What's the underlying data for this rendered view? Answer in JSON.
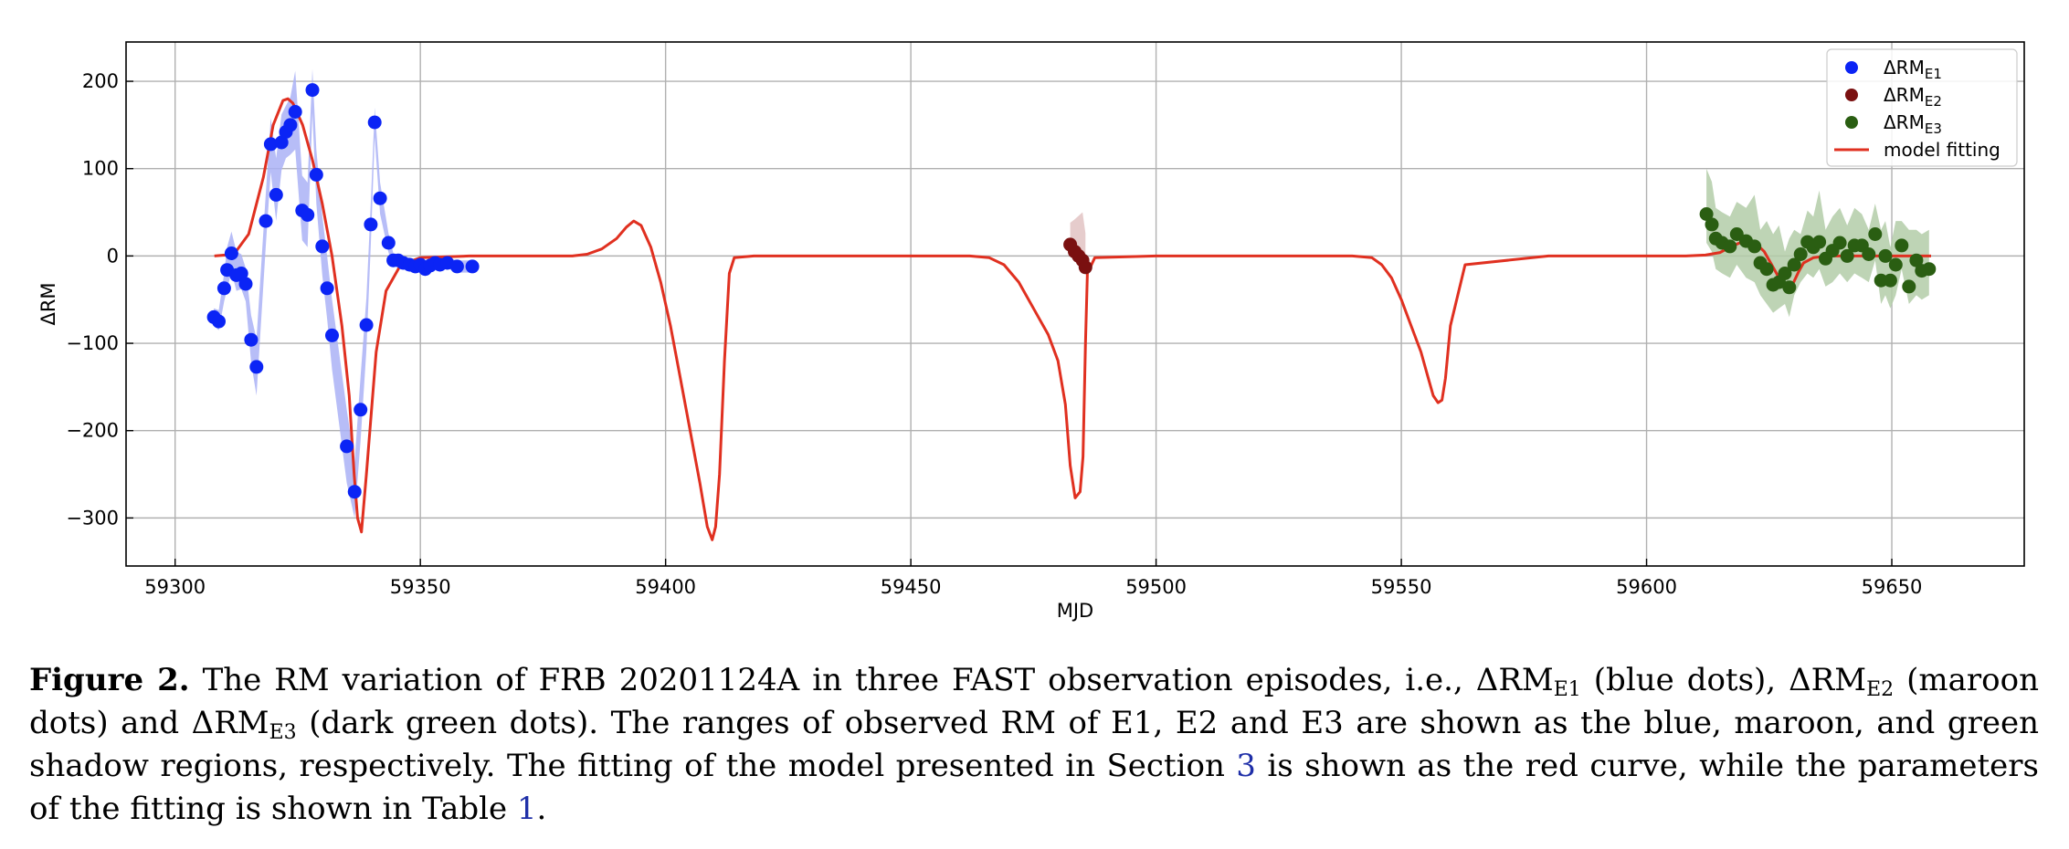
{
  "chart_data": {
    "type": "scatter",
    "xlabel": "MJD",
    "ylabel": "ΔRM",
    "xlim": [
      59290,
      59677
    ],
    "ylim": [
      -355,
      245
    ],
    "xticks": [
      59300,
      59350,
      59400,
      59450,
      59500,
      59550,
      59600,
      59650
    ],
    "yticks": [
      200,
      100,
      0,
      -100,
      -200,
      -300
    ],
    "ytick_labels": [
      "200",
      "100",
      "0",
      "−100",
      "−200",
      "−300"
    ],
    "grid": true,
    "legend_position": "top-right",
    "legend": [
      {
        "main": "ΔRM",
        "sub": "E1",
        "kind": "dot",
        "color": "#0b24f5"
      },
      {
        "main": "ΔRM",
        "sub": "E2",
        "kind": "dot",
        "color": "#7a1010"
      },
      {
        "main": "ΔRM",
        "sub": "E3",
        "kind": "dot",
        "color": "#2a5e12"
      },
      {
        "main": "model fitting",
        "sub": "",
        "kind": "line",
        "color": "#e03020"
      }
    ],
    "series": [
      {
        "name": "ΔRM_E1",
        "color": "#0b24f5",
        "band_color": "#aab2f6",
        "x": [
          59307.9,
          59308.9,
          59310.0,
          59310.6,
          59311.5,
          59312.5,
          59313.5,
          59314.4,
          59315.5,
          59316.6,
          59318.5,
          59319.5,
          59320.6,
          59321.7,
          59322.6,
          59323.5,
          59324.5,
          59325.9,
          59327.0,
          59328.0,
          59328.8,
          59330.0,
          59331.0,
          59332.0,
          59335.0,
          59336.6,
          59337.8,
          59339.0,
          59339.9,
          59340.7,
          59341.8,
          59343.5,
          59344.5,
          59345.5,
          59346.5,
          59347.8,
          59349.0,
          59350.0,
          59351.0,
          59352.0,
          59353.0,
          59354.0,
          59355.5,
          59357.5,
          59360.6
        ],
        "y": [
          -70,
          -75,
          -37,
          -16,
          3,
          -22,
          -20,
          -32,
          -96,
          -127,
          40,
          128,
          70,
          130,
          142,
          150,
          165,
          52,
          47,
          190,
          93,
          11,
          -37,
          -91,
          -218,
          -270,
          -176,
          -79,
          36,
          153,
          66,
          15,
          -5,
          -5,
          -8,
          -10,
          -12,
          -10,
          -15,
          -11,
          -8,
          -10,
          -8,
          -12,
          -12
        ],
        "band_upper": [
          -60,
          -62,
          -20,
          10,
          28,
          5,
          2,
          -14,
          -68,
          -95,
          72,
          158,
          112,
          162,
          172,
          182,
          212,
          92,
          84,
          214,
          122,
          46,
          0,
          -50,
          -176,
          -236,
          -138,
          -48,
          60,
          170,
          84,
          26,
          3,
          2,
          -1,
          -2,
          -4,
          -3,
          -7,
          -4,
          -1,
          -3,
          -2,
          -5,
          -5
        ],
        "band_lower": [
          -80,
          -85,
          -52,
          -38,
          -18,
          -40,
          -38,
          -52,
          -122,
          -160,
          12,
          96,
          40,
          98,
          112,
          116,
          122,
          18,
          10,
          164,
          60,
          -22,
          -72,
          -130,
          -260,
          -300,
          -212,
          -108,
          12,
          136,
          48,
          4,
          -12,
          -12,
          -15,
          -18,
          -20,
          -18,
          -23,
          -18,
          -15,
          -17,
          -14,
          -19,
          -19
        ]
      },
      {
        "name": "ΔRM_E2",
        "color": "#7a1010",
        "band_color": "#e2c3c3",
        "x": [
          59482.5,
          59483.4,
          59484.2,
          59485.0,
          59485.6
        ],
        "y": [
          13,
          5,
          0,
          -5,
          -13
        ],
        "band_upper": [
          38,
          42,
          46,
          50,
          26
        ],
        "band_lower": [
          8,
          0,
          -6,
          -14,
          -22
        ]
      },
      {
        "name": "ΔRM_E3",
        "color": "#2a5e12",
        "band_color": "#b3cda8",
        "x": [
          59612.2,
          59613.3,
          59614.1,
          59615.4,
          59617.0,
          59618.4,
          59620.3,
          59622.0,
          59623.2,
          59624.5,
          59625.8,
          59627.0,
          59628.2,
          59629.1,
          59630.1,
          59631.4,
          59632.8,
          59634.0,
          59635.2,
          59636.5,
          59637.9,
          59639.4,
          59640.9,
          59642.4,
          59643.9,
          59645.3,
          59646.6,
          59647.8,
          59648.7,
          59649.7,
          59650.8,
          59652.0,
          59653.5,
          59655.0,
          59656.1,
          59657.6
        ],
        "y": [
          48,
          36,
          20,
          15,
          11,
          25,
          17,
          11,
          -8,
          -15,
          -33,
          -30,
          -20,
          -36,
          -10,
          2,
          16,
          10,
          16,
          -3,
          6,
          15,
          0,
          12,
          12,
          2,
          25,
          -28,
          0,
          -28,
          -10,
          12,
          -35,
          -5,
          -17,
          -15
        ],
        "band_upper": [
          100,
          85,
          55,
          50,
          45,
          62,
          55,
          70,
          30,
          40,
          25,
          35,
          5,
          20,
          30,
          25,
          52,
          45,
          75,
          30,
          45,
          55,
          35,
          55,
          48,
          30,
          60,
          30,
          40,
          10,
          40,
          40,
          30,
          30,
          25,
          30
        ],
        "band_lower": [
          15,
          5,
          -15,
          -20,
          -25,
          -10,
          -25,
          -30,
          -45,
          -55,
          -65,
          -60,
          -55,
          -70,
          -45,
          -30,
          -20,
          -25,
          -15,
          -35,
          -30,
          -20,
          -30,
          -20,
          -25,
          -30,
          -5,
          -55,
          -45,
          -60,
          -45,
          -15,
          -55,
          -45,
          -50,
          -45
        ]
      },
      {
        "name": "model fitting",
        "type": "line",
        "color": "#e03020",
        "x": [
          59308,
          59312,
          59315,
          59318,
          59320,
          59322,
          59323,
          59324,
          59326,
          59328,
          59330,
          59332,
          59334,
          59335.5,
          59336.5,
          59337.2,
          59338,
          59339,
          59341,
          59343,
          59346,
          59350,
          59360,
          59375,
          59381,
          59384,
          59387,
          59390,
          59392,
          59393.5,
          59395,
          59397,
          59399,
          59401,
          59403,
          59405,
          59407,
          59408.5,
          59409.5,
          59410.2,
          59411,
          59412,
          59413,
          59414,
          59418,
          59430,
          59450,
          59462,
          59466,
          59469,
          59472,
          59475,
          59478,
          59480,
          59481.5,
          59482.5,
          59483.5,
          59484.5,
          59485.1,
          59485.6,
          59486,
          59487.5,
          59500,
          59540,
          59544,
          59546,
          59548,
          59550,
          59552,
          59554,
          59555.5,
          59556.5,
          59557.5,
          59558.3,
          59559,
          59560,
          59563,
          59580,
          59600,
          59608,
          59612,
          59615,
          59617,
          59619,
          59621,
          59622.5,
          59624,
          59625.5,
          59627,
          59628,
          59629,
          59630,
          59631,
          59632,
          59634,
          59637,
          59641,
          59650,
          59658
        ],
        "y": [
          0,
          2,
          25,
          90,
          150,
          178,
          180,
          175,
          150,
          110,
          60,
          0,
          -80,
          -160,
          -250,
          -300,
          -316,
          -250,
          -110,
          -40,
          -10,
          -2,
          0,
          0,
          0,
          2,
          8,
          20,
          33,
          40,
          35,
          10,
          -30,
          -80,
          -140,
          -200,
          -260,
          -310,
          -325,
          -310,
          -250,
          -120,
          -20,
          -2,
          0,
          0,
          0,
          0,
          -2,
          -10,
          -30,
          -60,
          -90,
          -120,
          -170,
          -240,
          -277,
          -270,
          -230,
          -100,
          -20,
          -2,
          0,
          0,
          -2,
          -10,
          -25,
          -50,
          -80,
          -110,
          -140,
          -160,
          -168,
          -165,
          -140,
          -80,
          -10,
          0,
          0,
          0,
          1,
          4,
          10,
          15,
          16,
          13,
          5,
          -10,
          -25,
          -35,
          -38,
          -30,
          -18,
          -8,
          -2,
          0,
          0,
          0,
          0
        ]
      }
    ]
  },
  "caption": {
    "label": "Figure 2.",
    "part1": " The RM variation of FRB 20201124A in three FAST observation episodes, i.e., ΔRM",
    "sub1": "E1",
    "part2": " (blue dots), ΔRM",
    "sub2": "E2",
    "part3": " (maroon dots) and ΔRM",
    "sub3": "E3",
    "part4": " (dark green dots). The ranges of observed RM of E1, E2 and E3 are shown as the blue, maroon, and green shadow regions, respectively. The fitting of the model presented in Section ",
    "ref_section": "3",
    "part5": " is shown as the red curve, while the parameters of the fitting is shown in Table ",
    "ref_table": "1",
    "part6": "."
  }
}
